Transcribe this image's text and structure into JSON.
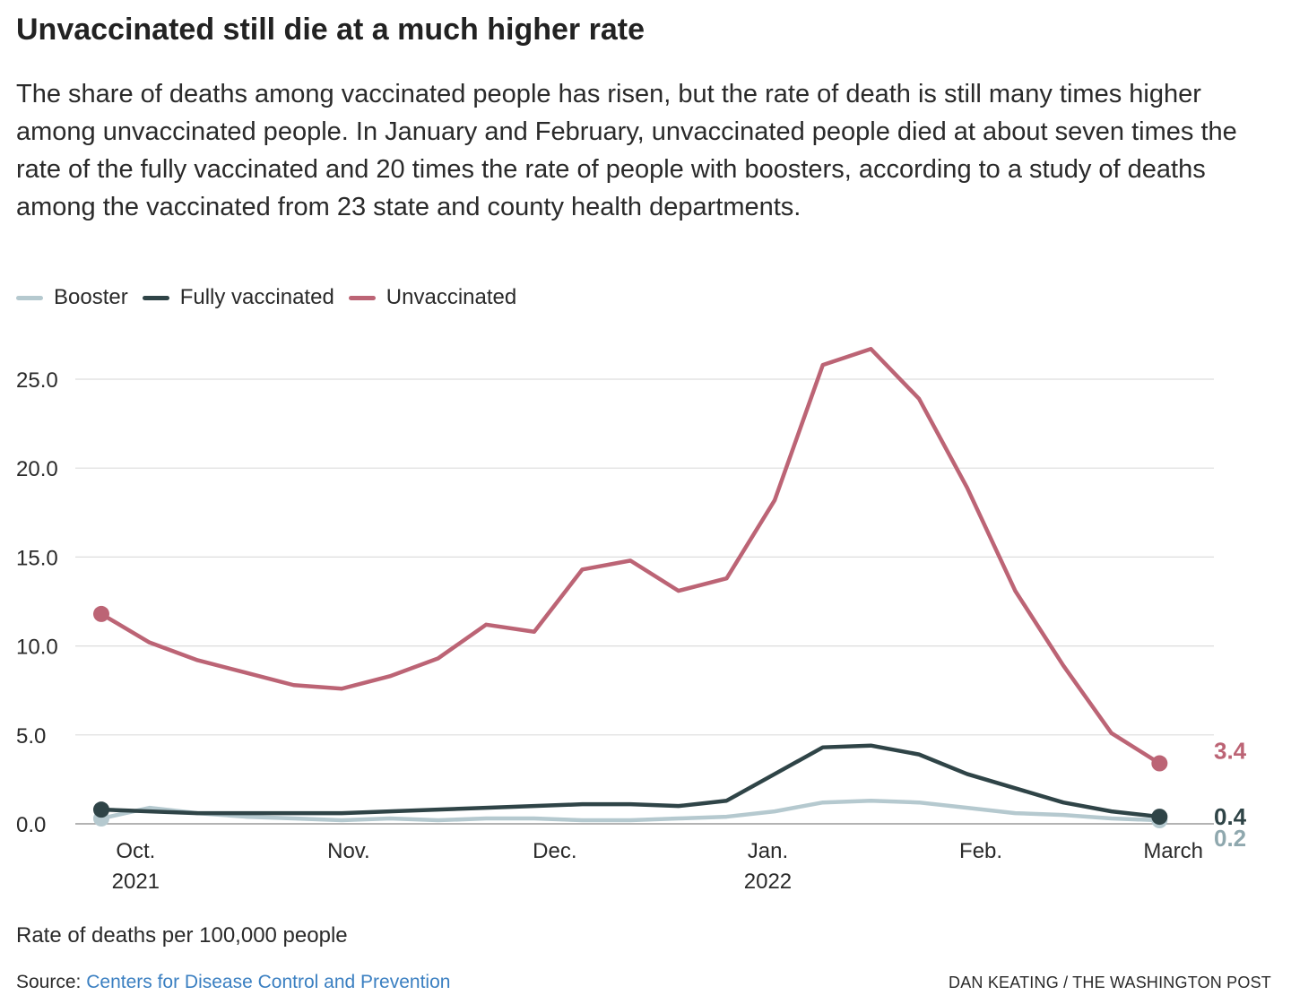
{
  "header": {
    "title": "Unvaccinated still die at a much higher rate",
    "subtitle": "The share of deaths among vaccinated people has risen, but the rate of death is still many times higher among unvaccinated people. In January and February, unvaccinated people died at about seven times the rate of the fully vaccinated and 20 times the rate of people with boosters, according to a study of deaths among the vaccinated from 23 state and county health departments."
  },
  "footer": {
    "note": "Rate of deaths per 100,000 people",
    "source_label": "Source:",
    "source_link": "Centers for Disease Control and Prevention",
    "credit": "DAN KEATING / THE WASHINGTON POST"
  },
  "chart_data": {
    "type": "line",
    "title": "Unvaccinated still die at a much higher rate",
    "ylabel": "Rate of deaths per 100,000 people",
    "ylim": [
      0,
      27
    ],
    "yticks": [
      0,
      5,
      10,
      15,
      20,
      25
    ],
    "ytick_labels": [
      "0.0",
      "5.0",
      "10.0",
      "15.0",
      "20.0",
      "25.0"
    ],
    "xlim": [
      "2021-09-26",
      "2022-03-03"
    ],
    "xticks": [
      {
        "date": "2021-10-01",
        "label": "Oct.",
        "sublabel": "2021"
      },
      {
        "date": "2021-11-01",
        "label": "Nov.",
        "sublabel": ""
      },
      {
        "date": "2021-12-01",
        "label": "Dec.",
        "sublabel": ""
      },
      {
        "date": "2022-01-01",
        "label": "Jan.",
        "sublabel": "2022"
      },
      {
        "date": "2022-02-01",
        "label": "Feb.",
        "sublabel": ""
      },
      {
        "date": "2022-03-01",
        "label": "March",
        "sublabel": ""
      }
    ],
    "x": [
      "2021-09-26",
      "2021-10-03",
      "2021-10-10",
      "2021-10-17",
      "2021-10-24",
      "2021-10-31",
      "2021-11-07",
      "2021-11-14",
      "2021-11-21",
      "2021-11-28",
      "2021-12-05",
      "2021-12-12",
      "2021-12-19",
      "2021-12-26",
      "2022-01-02",
      "2022-01-09",
      "2022-01-16",
      "2022-01-23",
      "2022-01-30",
      "2022-02-06",
      "2022-02-13",
      "2022-02-20",
      "2022-02-27"
    ],
    "series": [
      {
        "name": "Booster",
        "color": "#b5c9cf",
        "end_label": "0.2",
        "end_label_color": "#8fa8ae",
        "values": [
          0.3,
          0.9,
          0.6,
          0.4,
          0.3,
          0.2,
          0.3,
          0.2,
          0.3,
          0.3,
          0.2,
          0.2,
          0.3,
          0.4,
          0.7,
          1.2,
          1.3,
          1.2,
          0.9,
          0.6,
          0.5,
          0.3,
          0.2
        ]
      },
      {
        "name": "Fully vaccinated",
        "color": "#2f4447",
        "end_label": "0.4",
        "end_label_color": "#2f4447",
        "values": [
          0.8,
          0.7,
          0.6,
          0.6,
          0.6,
          0.6,
          0.7,
          0.8,
          0.9,
          1.0,
          1.1,
          1.1,
          1.0,
          1.3,
          2.8,
          4.3,
          4.4,
          3.9,
          2.8,
          2.0,
          1.2,
          0.7,
          0.4
        ]
      },
      {
        "name": "Unvaccinated",
        "color": "#bc6475",
        "end_label": "3.4",
        "end_label_color": "#bc6475",
        "values": [
          11.8,
          10.2,
          9.2,
          8.5,
          7.8,
          7.6,
          8.3,
          9.3,
          11.2,
          10.8,
          14.3,
          14.8,
          13.1,
          13.8,
          18.2,
          25.8,
          26.7,
          23.9,
          18.9,
          13.1,
          8.9,
          5.1,
          3.4
        ]
      }
    ],
    "legend_position": "top-left",
    "grid": true
  }
}
